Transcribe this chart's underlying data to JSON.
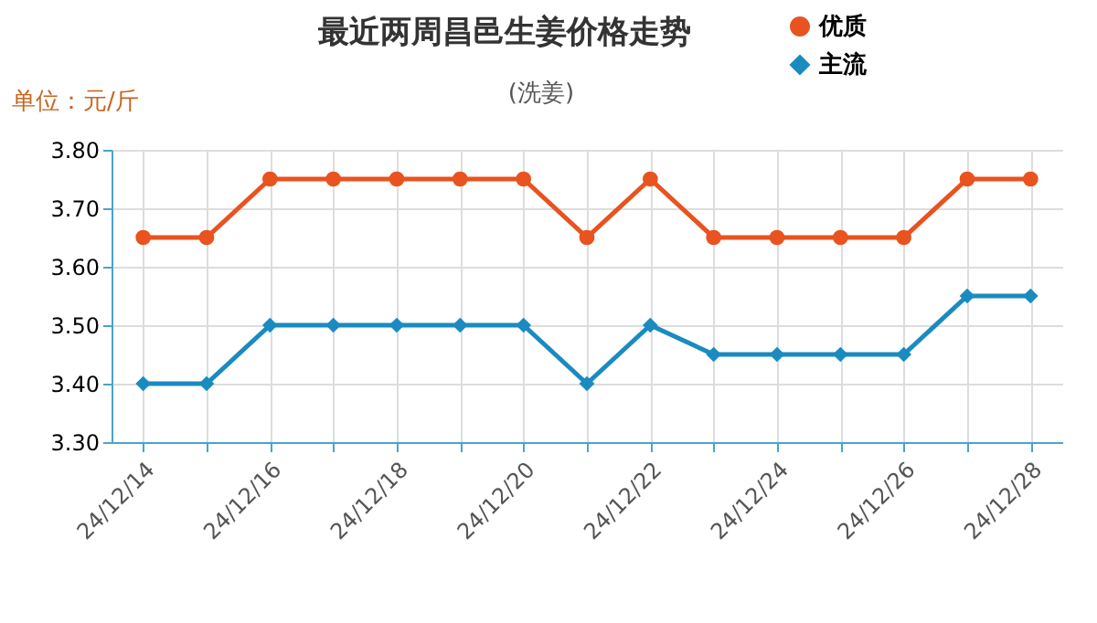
{
  "chart_data": {
    "type": "line",
    "title": "最近两周昌邑生姜价格走势",
    "subtitle": "(洗姜)",
    "ylabel": "单位：元/斤",
    "categories": [
      "24/12/14",
      null,
      "24/12/16",
      null,
      "24/12/18",
      null,
      "24/12/20",
      null,
      "24/12/22",
      null,
      "24/12/24",
      null,
      "24/12/26",
      null,
      "24/12/28"
    ],
    "series": [
      {
        "name": "优质",
        "color": "#e8531f",
        "marker": "circle",
        "values": [
          3.65,
          3.65,
          3.75,
          3.75,
          3.75,
          3.75,
          3.75,
          3.65,
          3.75,
          3.65,
          3.65,
          3.65,
          3.65,
          3.75,
          3.75
        ]
      },
      {
        "name": "主流",
        "color": "#1a8bc0",
        "marker": "diamond",
        "values": [
          3.4,
          3.4,
          3.5,
          3.5,
          3.5,
          3.5,
          3.5,
          3.4,
          3.5,
          3.45,
          3.45,
          3.45,
          3.45,
          3.55,
          3.55
        ]
      }
    ],
    "ylim": [
      3.3,
      3.8
    ],
    "yticks": [
      {
        "value": 3.3,
        "label": "3.30"
      },
      {
        "value": 3.4,
        "label": "3.40"
      },
      {
        "value": 3.5,
        "label": "3.50"
      },
      {
        "value": 3.6,
        "label": "3.60"
      },
      {
        "value": 3.7,
        "label": "3.70"
      },
      {
        "value": 3.8,
        "label": "3.80"
      }
    ],
    "grid": true,
    "legend": "top right",
    "line_style": "solid"
  }
}
